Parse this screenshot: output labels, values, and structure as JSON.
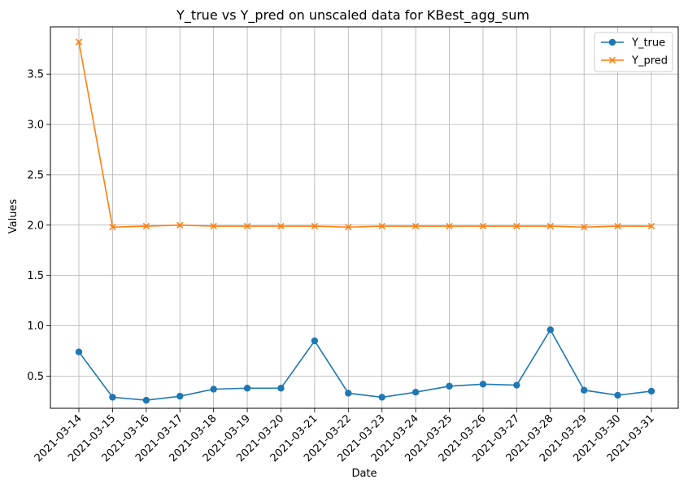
{
  "chart_data": {
    "type": "line",
    "title": "Y_true vs Y_pred on unscaled data for KBest_agg_sum",
    "xlabel": "Date",
    "ylabel": "Values",
    "categories": [
      "2021-03-14",
      "2021-03-15",
      "2021-03-16",
      "2021-03-17",
      "2021-03-18",
      "2021-03-19",
      "2021-03-20",
      "2021-03-21",
      "2021-03-22",
      "2021-03-23",
      "2021-03-24",
      "2021-03-25",
      "2021-03-26",
      "2021-03-27",
      "2021-03-28",
      "2021-03-29",
      "2021-03-30",
      "2021-03-31"
    ],
    "yticks": [
      "0.5",
      "1.0",
      "1.5",
      "2.0",
      "2.5",
      "3.0",
      "3.5"
    ],
    "ylim": [
      0.18,
      3.97
    ],
    "grid": true,
    "legend_position": "top-right",
    "series": [
      {
        "name": "Y_true",
        "color": "#1f77b4",
        "marker": "circle",
        "values": [
          0.74,
          0.29,
          0.26,
          0.3,
          0.37,
          0.38,
          0.38,
          0.85,
          0.33,
          0.29,
          0.34,
          0.4,
          0.42,
          0.41,
          0.96,
          0.36,
          0.31,
          0.35
        ]
      },
      {
        "name": "Y_pred",
        "color": "#ff7f0e",
        "marker": "x",
        "values": [
          3.82,
          1.98,
          1.99,
          2.0,
          1.99,
          1.99,
          1.99,
          1.99,
          1.98,
          1.99,
          1.99,
          1.99,
          1.99,
          1.99,
          1.99,
          1.98,
          1.99,
          1.99
        ]
      }
    ]
  }
}
